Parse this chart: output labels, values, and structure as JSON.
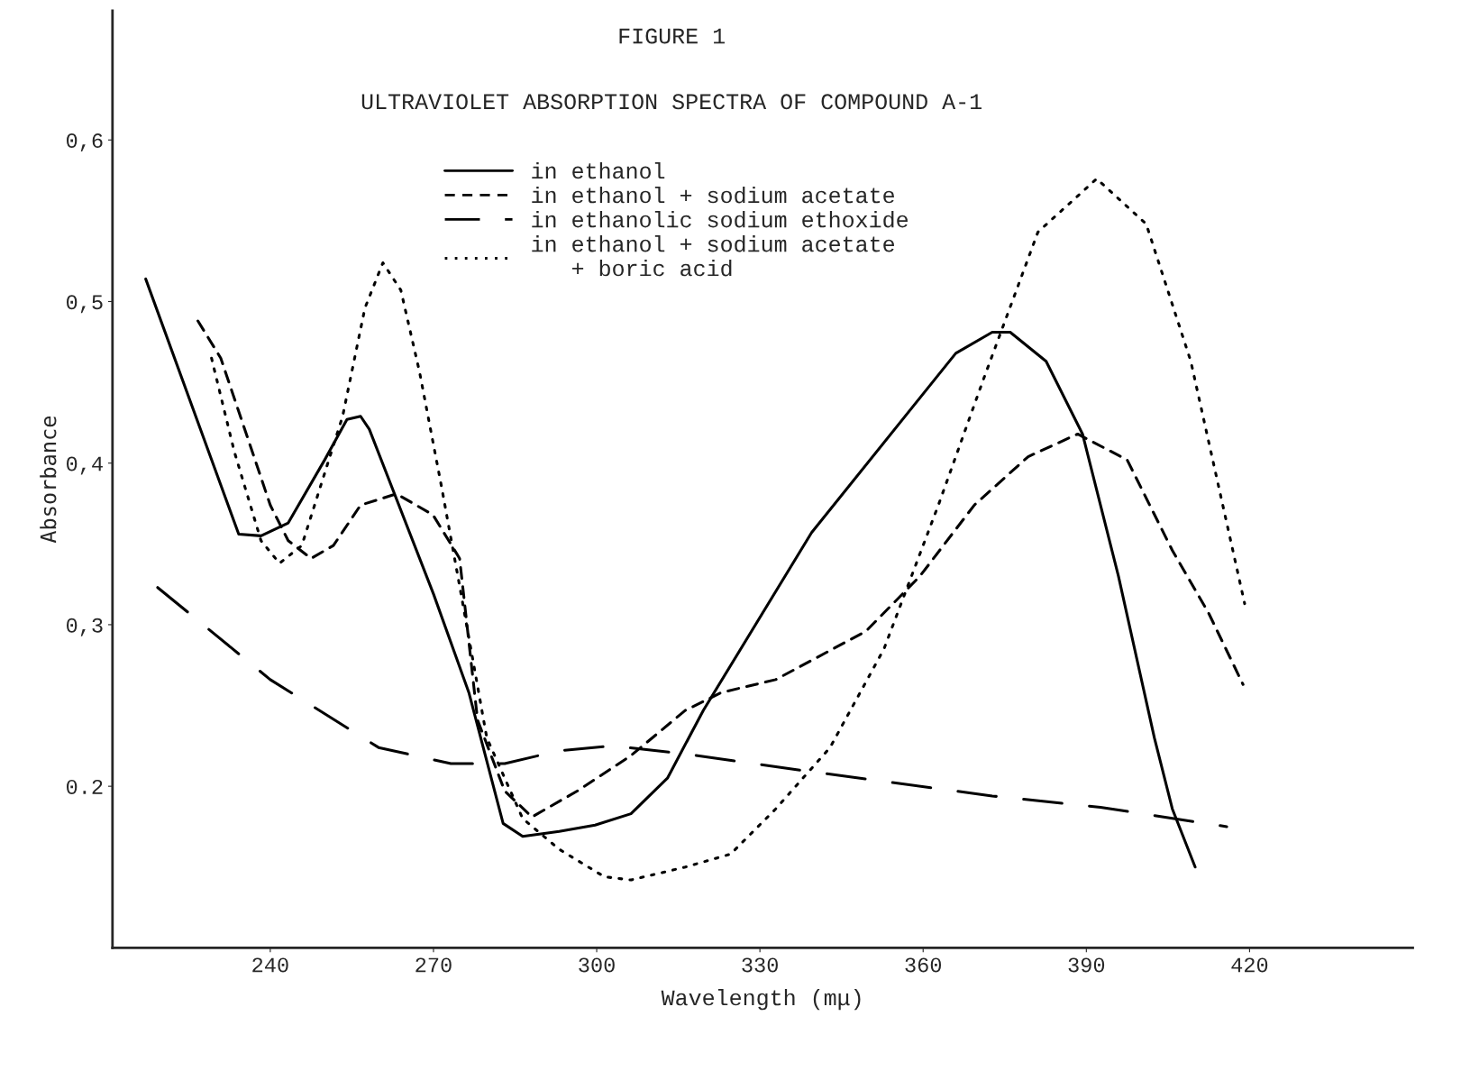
{
  "chart_data": {
    "type": "line",
    "title": "FIGURE 1",
    "subtitle": "ULTRAVIOLET ABSORPTION SPECTRA OF COMPOUND A-1",
    "xlabel": "Wavelength (mμ)",
    "ylabel": "Absorbance",
    "xlim": [
      211,
      450
    ],
    "ylim": [
      0.1,
      0.68
    ],
    "xticks": [
      240,
      270,
      300,
      330,
      360,
      390,
      420
    ],
    "yticks": [
      {
        "value": 0.2,
        "label": "0.2"
      },
      {
        "value": 0.3,
        "label": "0,3"
      },
      {
        "value": 0.4,
        "label": "0,4"
      },
      {
        "value": 0.5,
        "label": "0,5"
      },
      {
        "value": 0.6,
        "label": "0,6"
      }
    ],
    "grid": false,
    "legend": "top",
    "marker": "none",
    "series": [
      {
        "name": "in ethanol",
        "color": "#000000",
        "line_style": "solid",
        "x": [
          217.1,
          234.2,
          238.3,
          243.3,
          250,
          254.1,
          256.6,
          258.2,
          270,
          276.5,
          282.8,
          286.4,
          293.1,
          299.7,
          306.3,
          313,
          319.6,
          339.5,
          366,
          372.7,
          376,
          382.6,
          389.3,
          395.9,
          402.5,
          405.8,
          410
        ],
        "values": [
          0.514,
          0.356,
          0.355,
          0.363,
          0.402,
          0.427,
          0.429,
          0.421,
          0.319,
          0.258,
          0.177,
          0.169,
          0.172,
          0.176,
          0.183,
          0.205,
          0.247,
          0.357,
          0.468,
          0.481,
          0.481,
          0.463,
          0.418,
          0.33,
          0.23,
          0.186,
          0.15
        ]
      },
      {
        "name": "in ethanol + sodium acetate",
        "color": "#000000",
        "line_style": "dashed",
        "x": [
          226.7,
          230.9,
          235,
          240,
          243.3,
          247.5,
          251.6,
          256.6,
          263.2,
          269.9,
          274.8,
          278.1,
          283.1,
          288.1,
          296.4,
          306.3,
          316.3,
          322.9,
          332.9,
          349.5,
          359.4,
          369.4,
          379.3,
          388.4,
          397.5,
          405.8,
          412.5,
          418.8
        ],
        "values": [
          0.488,
          0.465,
          0.424,
          0.374,
          0.352,
          0.341,
          0.349,
          0.374,
          0.381,
          0.368,
          0.341,
          0.241,
          0.197,
          0.181,
          0.197,
          0.219,
          0.247,
          0.258,
          0.266,
          0.296,
          0.33,
          0.374,
          0.404,
          0.418,
          0.402,
          0.346,
          0.307,
          0.263
        ]
      },
      {
        "name": "in ethanolic sodium ethoxide",
        "color": "#000000",
        "line_style": "long dashed",
        "x": [
          219.3,
          240,
          259.9,
          273.2,
          283.1,
          293.1,
          303,
          316.3,
          339.5,
          372.7,
          392.6,
          415.8
        ],
        "values": [
          0.323,
          0.266,
          0.224,
          0.214,
          0.214,
          0.222,
          0.225,
          0.22,
          0.209,
          0.194,
          0.187,
          0.175
        ]
      },
      {
        "name": "in ethanol + sodium acetate\n   + boric acid",
        "color": "#000000",
        "line_style": "dotted",
        "x": [
          229.2,
          233.4,
          238.3,
          241.7,
          245.8,
          253.3,
          257.4,
          260.7,
          264,
          267.4,
          271.5,
          274.8,
          279.8,
          286.4,
          293.1,
          301.4,
          306.3,
          316.3,
          324.6,
          332.9,
          342.9,
          352.8,
          362.8,
          371.1,
          381.1,
          391.9,
          401,
          409.2,
          415.8,
          419.1
        ],
        "values": [
          0.465,
          0.407,
          0.352,
          0.338,
          0.349,
          0.429,
          0.496,
          0.524,
          0.507,
          0.457,
          0.385,
          0.324,
          0.23,
          0.18,
          0.161,
          0.144,
          0.142,
          0.15,
          0.158,
          0.186,
          0.224,
          0.285,
          0.374,
          0.452,
          0.543,
          0.576,
          0.548,
          0.463,
          0.363,
          0.313
        ]
      }
    ]
  }
}
